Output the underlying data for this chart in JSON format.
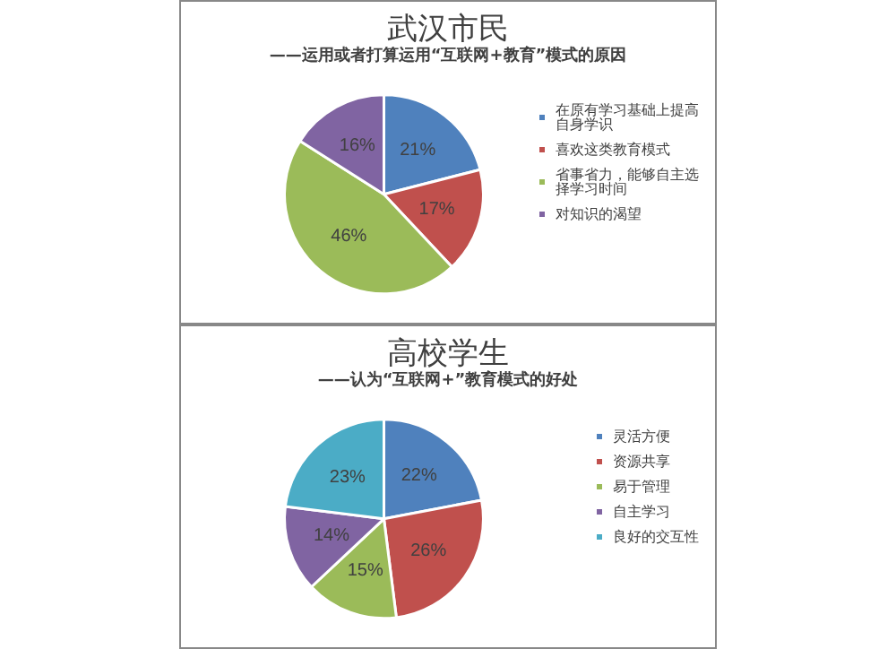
{
  "chart_data": [
    {
      "type": "pie",
      "title": "武汉市民",
      "subtitle": "——运用或者打算运用“互联网+教育”模式的原因",
      "categories": [
        "在原有学习基础上提高自身学识",
        "喜欢这类教育模式",
        "省事省力，能够自主选择学习时间",
        "对知识的渴望"
      ],
      "values": [
        21,
        17,
        46,
        16
      ],
      "value_labels": [
        "21%",
        "17%",
        "46%",
        "16%"
      ],
      "colors": [
        "#4f81bd",
        "#c0504d",
        "#9bbb59",
        "#8064a2"
      ],
      "legend": "right"
    },
    {
      "type": "pie",
      "title": "高校学生",
      "subtitle": "——认为“互联网+”教育模式的好处",
      "categories": [
        "灵活方便",
        "资源共享",
        "易于管理",
        "自主学习",
        "良好的交互性"
      ],
      "values": [
        22,
        26,
        15,
        14,
        23
      ],
      "value_labels": [
        "22%",
        "26%",
        "15%",
        "14%",
        "23%"
      ],
      "colors": [
        "#4f81bd",
        "#c0504d",
        "#9bbb59",
        "#8064a2",
        "#4bacc6"
      ],
      "legend": "right"
    }
  ]
}
